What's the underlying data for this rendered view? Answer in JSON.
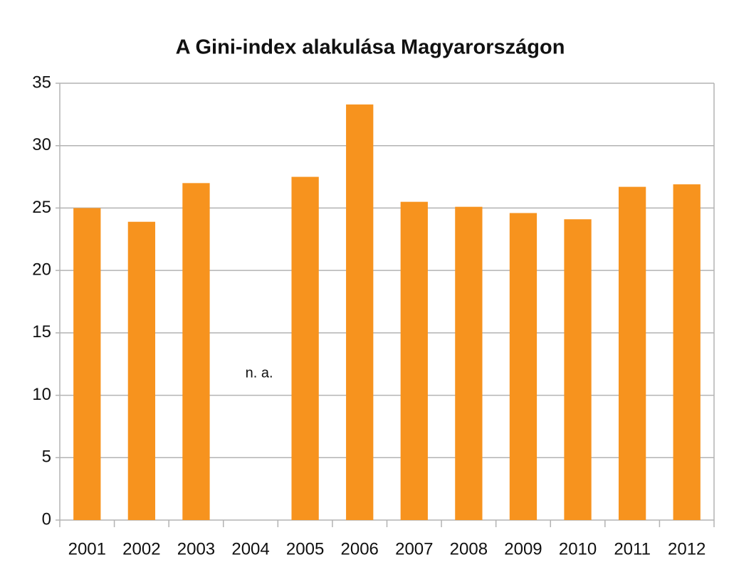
{
  "chart_data": {
    "type": "bar",
    "title": "A Gini-index alakulása Magyarországon",
    "categories": [
      "2001",
      "2002",
      "2003",
      "2004",
      "2005",
      "2006",
      "2007",
      "2008",
      "2009",
      "2010",
      "2011",
      "2012"
    ],
    "values": [
      25.0,
      23.9,
      27.0,
      null,
      27.5,
      33.3,
      25.5,
      25.1,
      24.6,
      24.1,
      26.7,
      26.9
    ],
    "missing_label": "n. a.",
    "color": "#f7931e",
    "ylim": [
      0,
      35
    ],
    "yticks": [
      0,
      5,
      10,
      15,
      20,
      25,
      30,
      35
    ],
    "grid": true
  }
}
